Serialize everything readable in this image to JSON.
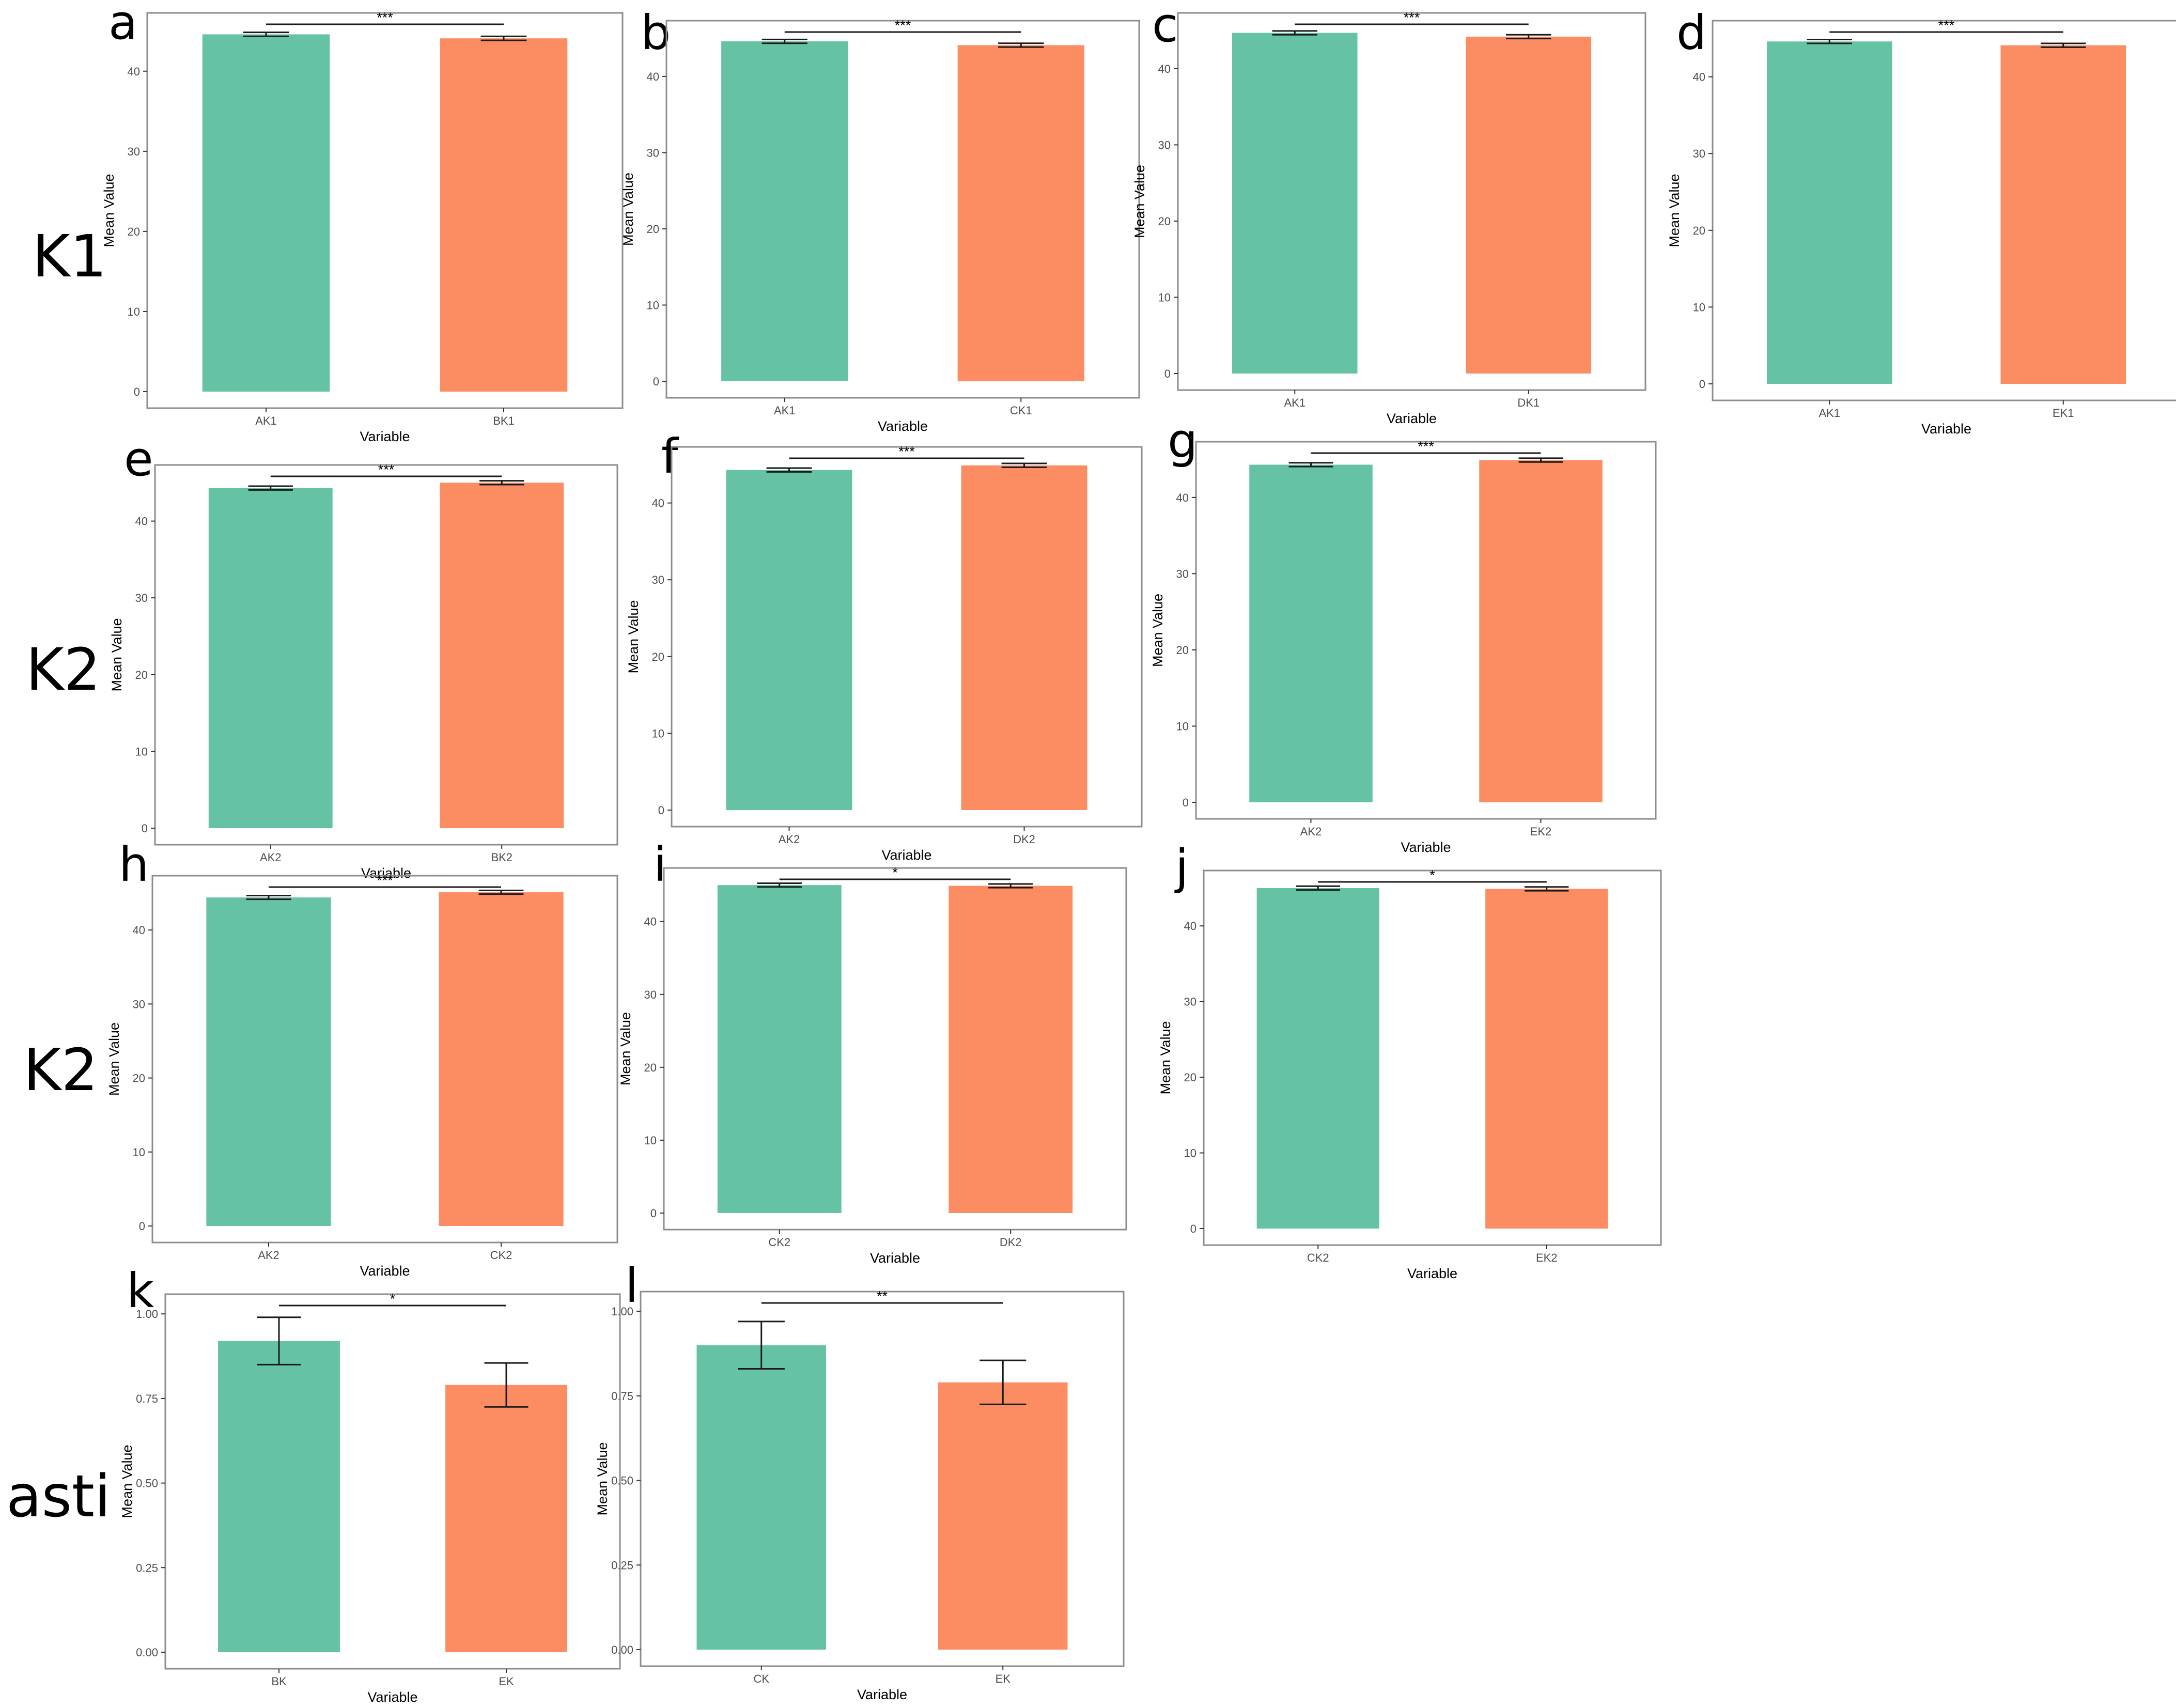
{
  "colors": {
    "bar_1": "#66c2a5",
    "bar_2": "#fc8d62",
    "frame": "#8c8c8c",
    "text": "#000000",
    "tick_text": "#4d4d4d"
  },
  "row_labels": [
    "K1",
    "K2",
    "K2",
    "asti"
  ],
  "chart_data": [
    {
      "panel": "a",
      "type": "bar",
      "categories": [
        "AK1",
        "BK1"
      ],
      "values": [
        44.6,
        44.1
      ],
      "errors": [
        0.25,
        0.25
      ],
      "significance": "***",
      "xlabel": "Variable",
      "ylabel": "Mean Value",
      "ylim": [
        0,
        46.5
      ],
      "yticks": [
        0,
        10,
        20,
        30,
        40
      ],
      "tick_labels": [
        "0",
        "10",
        "20",
        "30",
        "40"
      ],
      "grid": false
    },
    {
      "panel": "b",
      "type": "bar",
      "categories": [
        "AK1",
        "CK1"
      ],
      "values": [
        44.6,
        44.1
      ],
      "errors": [
        0.25,
        0.25
      ],
      "significance": "***",
      "xlabel": "Variable",
      "ylabel": "Mean Value",
      "ylim": [
        0,
        46.5
      ],
      "yticks": [
        0,
        10,
        20,
        30,
        40
      ],
      "tick_labels": [
        "0",
        "10",
        "20",
        "30",
        "40"
      ],
      "grid": false
    },
    {
      "panel": "c",
      "type": "bar",
      "categories": [
        "AK1",
        "DK1"
      ],
      "values": [
        44.7,
        44.2
      ],
      "errors": [
        0.25,
        0.25
      ],
      "significance": "***",
      "xlabel": "Variable",
      "ylabel": "Mean Value",
      "ylim": [
        0,
        46.5
      ],
      "yticks": [
        0,
        10,
        20,
        30,
        40
      ],
      "tick_labels": [
        "0",
        "10",
        "20",
        "30",
        "40"
      ],
      "grid": false
    },
    {
      "panel": "d",
      "type": "bar",
      "categories": [
        "AK1",
        "EK1"
      ],
      "values": [
        44.6,
        44.1
      ],
      "errors": [
        0.25,
        0.25
      ],
      "significance": "***",
      "xlabel": "Variable",
      "ylabel": "Mean Value",
      "ylim": [
        0,
        46.5
      ],
      "yticks": [
        0,
        10,
        20,
        30,
        40
      ],
      "tick_labels": [
        "0",
        "10",
        "20",
        "30",
        "40"
      ],
      "grid": false
    },
    {
      "panel": "e",
      "type": "bar",
      "categories": [
        "AK2",
        "BK2"
      ],
      "values": [
        44.3,
        45.0
      ],
      "errors": [
        0.25,
        0.25
      ],
      "significance": "***",
      "xlabel": "Variable",
      "ylabel": "Mean Value",
      "ylim": [
        0,
        46.5
      ],
      "yticks": [
        0,
        10,
        20,
        30,
        40
      ],
      "tick_labels": [
        "0",
        "10",
        "20",
        "30",
        "40"
      ],
      "grid": false
    },
    {
      "panel": "f",
      "type": "bar",
      "categories": [
        "AK2",
        "DK2"
      ],
      "values": [
        44.3,
        44.9
      ],
      "errors": [
        0.25,
        0.25
      ],
      "significance": "***",
      "xlabel": "Variable",
      "ylabel": "Mean Value",
      "ylim": [
        0,
        46.5
      ],
      "yticks": [
        0,
        10,
        20,
        30,
        40
      ],
      "tick_labels": [
        "0",
        "10",
        "20",
        "30",
        "40"
      ],
      "grid": false
    },
    {
      "panel": "g",
      "type": "bar",
      "categories": [
        "AK2",
        "EK2"
      ],
      "values": [
        44.3,
        44.9
      ],
      "errors": [
        0.25,
        0.25
      ],
      "significance": "***",
      "xlabel": "Variable",
      "ylabel": "Mean Value",
      "ylim": [
        0,
        46.5
      ],
      "yticks": [
        0,
        10,
        20,
        30,
        40
      ],
      "tick_labels": [
        "0",
        "10",
        "20",
        "30",
        "40"
      ],
      "grid": false
    },
    {
      "panel": "h",
      "type": "bar",
      "categories": [
        "AK2",
        "CK2"
      ],
      "values": [
        44.4,
        45.1
      ],
      "errors": [
        0.25,
        0.25
      ],
      "significance": "***",
      "xlabel": "Variable",
      "ylabel": "Mean Value",
      "ylim": [
        0,
        46.5
      ],
      "yticks": [
        0,
        10,
        20,
        30,
        40
      ],
      "tick_labels": [
        "0",
        "10",
        "20",
        "30",
        "40"
      ],
      "grid": false
    },
    {
      "panel": "i",
      "type": "bar",
      "categories": [
        "CK2",
        "DK2"
      ],
      "values": [
        45.0,
        44.9
      ],
      "errors": [
        0.25,
        0.25
      ],
      "significance": "*",
      "xlabel": "Variable",
      "ylabel": "Mean Value",
      "ylim": [
        0,
        46.5
      ],
      "yticks": [
        0,
        10,
        20,
        30,
        40
      ],
      "tick_labels": [
        "0",
        "10",
        "20",
        "30",
        "40"
      ],
      "grid": false
    },
    {
      "panel": "j",
      "type": "bar",
      "categories": [
        "CK2",
        "EK2"
      ],
      "values": [
        45.0,
        44.9
      ],
      "errors": [
        0.25,
        0.25
      ],
      "significance": "*",
      "xlabel": "Variable",
      "ylabel": "Mean Value",
      "ylim": [
        0,
        46.5
      ],
      "yticks": [
        0,
        10,
        20,
        30,
        40
      ],
      "tick_labels": [
        "0",
        "10",
        "20",
        "30",
        "40"
      ],
      "grid": false
    },
    {
      "panel": "k",
      "type": "bar",
      "categories": [
        "BK",
        "EK"
      ],
      "values": [
        0.92,
        0.79
      ],
      "errors": [
        0.07,
        0.065
      ],
      "significance": "*",
      "xlabel": "Variable",
      "ylabel": "Mean Value",
      "ylim": [
        0,
        1.04
      ],
      "yticks": [
        0,
        0.25,
        0.5,
        0.75,
        1.0
      ],
      "tick_labels": [
        "0.00",
        "0.25",
        "0.50",
        "0.75",
        "1.00"
      ],
      "grid": false
    },
    {
      "panel": "l",
      "type": "bar",
      "categories": [
        "CK",
        "EK"
      ],
      "values": [
        0.9,
        0.79
      ],
      "errors": [
        0.07,
        0.065
      ],
      "significance": "**",
      "xlabel": "Variable",
      "ylabel": "Mean Value",
      "ylim": [
        0,
        1.04
      ],
      "yticks": [
        0,
        0.25,
        0.5,
        0.75,
        1.0
      ],
      "tick_labels": [
        "0.00",
        "0.25",
        "0.50",
        "0.75",
        "1.00"
      ],
      "grid": false
    }
  ]
}
